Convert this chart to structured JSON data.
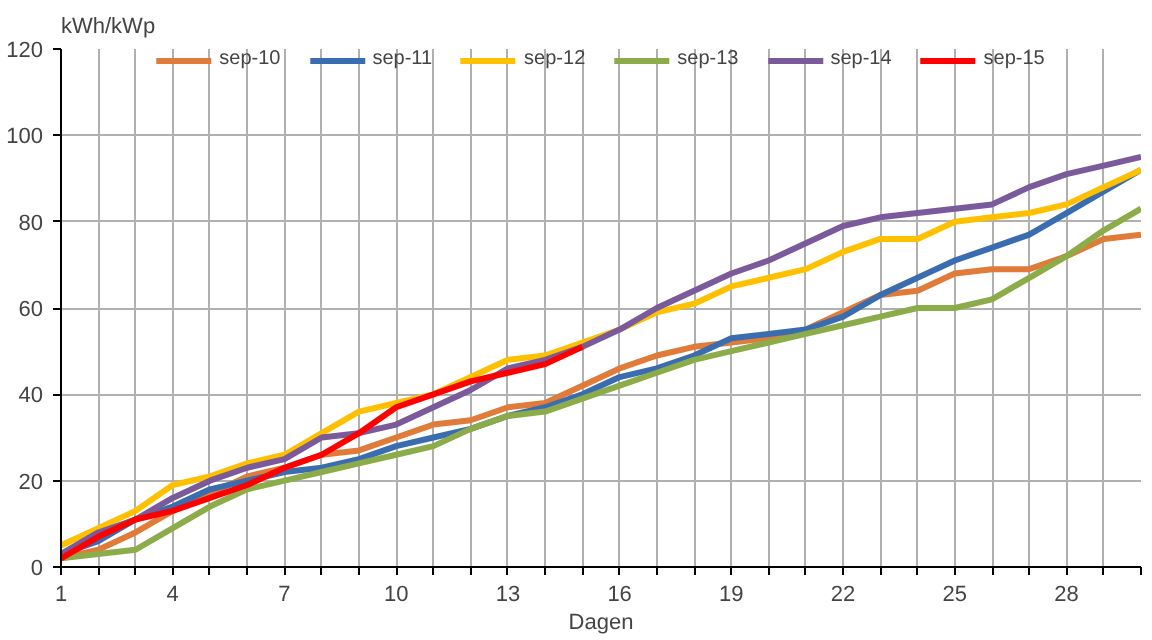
{
  "chart_data": {
    "type": "line",
    "ylabel": "kWh/kWp",
    "xlabel": "Dagen",
    "xlim": [
      1,
      30
    ],
    "xticks": [
      1,
      {
        "value": 2,
        "label": null
      },
      {
        "value": 3,
        "label": null
      },
      4,
      {
        "value": 5,
        "label": null
      },
      {
        "value": 6,
        "label": null
      },
      7,
      {
        "value": 8,
        "label": null
      },
      {
        "value": 9,
        "label": null
      },
      10,
      {
        "value": 11,
        "label": null
      },
      {
        "value": 12,
        "label": null
      },
      13,
      {
        "value": 14,
        "label": null
      },
      {
        "value": 15,
        "label": null
      },
      16,
      {
        "value": 17,
        "label": null
      },
      {
        "value": 18,
        "label": null
      },
      19,
      {
        "value": 20,
        "label": null
      },
      {
        "value": 21,
        "label": null
      },
      22,
      {
        "value": 23,
        "label": null
      },
      {
        "value": 24,
        "label": null
      },
      25,
      {
        "value": 26,
        "label": null
      },
      {
        "value": 27,
        "label": null
      },
      28,
      {
        "value": 29,
        "label": null
      },
      {
        "value": 30,
        "label": null
      }
    ],
    "ylim": [
      0,
      120
    ],
    "yticks": [
      0,
      20,
      40,
      60,
      80,
      100,
      120
    ],
    "grid": true,
    "legend": "top",
    "line_style": "solid",
    "x": [
      1,
      2,
      3,
      4,
      5,
      6,
      7,
      8,
      9,
      10,
      11,
      12,
      13,
      14,
      15,
      16,
      17,
      18,
      19,
      20,
      21,
      22,
      23,
      24,
      25,
      26,
      27,
      28,
      29,
      30
    ],
    "series": [
      {
        "name": "sep-10",
        "color": "#e07b39",
        "values": [
          2,
          4,
          8,
          13,
          17,
          21,
          23,
          26,
          27,
          30,
          33,
          34,
          37,
          38,
          42,
          46,
          49,
          51,
          52,
          53,
          55,
          59,
          63,
          64,
          68,
          69,
          69,
          72,
          76,
          77
        ]
      },
      {
        "name": "sep-11",
        "color": "#3a6db0",
        "values": [
          3,
          6,
          11,
          14,
          18,
          20,
          22,
          23,
          25,
          28,
          30,
          32,
          35,
          37,
          40,
          44,
          46,
          49,
          53,
          54,
          55,
          58,
          63,
          67,
          71,
          74,
          77,
          82,
          87,
          92
        ]
      },
      {
        "name": "sep-12",
        "color": "#ffc000",
        "values": [
          5,
          9,
          13,
          19,
          21,
          24,
          26,
          31,
          36,
          38,
          40,
          44,
          48,
          49,
          52,
          55,
          59,
          61,
          65,
          67,
          69,
          73,
          76,
          76,
          80,
          81,
          82,
          84,
          88,
          92
        ]
      },
      {
        "name": "sep-13",
        "color": "#8cac4a",
        "values": [
          2,
          3,
          4,
          9,
          14,
          18,
          20,
          22,
          24,
          26,
          28,
          32,
          35,
          36,
          39,
          42,
          45,
          48,
          50,
          52,
          54,
          56,
          58,
          60,
          60,
          62,
          67,
          72,
          78,
          83
        ]
      },
      {
        "name": "sep-14",
        "color": "#7a5a9a",
        "values": [
          3,
          8,
          11,
          16,
          20,
          23,
          25,
          30,
          31,
          33,
          37,
          41,
          46,
          48,
          51,
          55,
          60,
          64,
          68,
          71,
          75,
          79,
          81,
          82,
          83,
          84,
          88,
          91,
          93,
          95
        ]
      },
      {
        "name": "sep-15",
        "color": "#ff0000",
        "values": [
          2,
          7,
          11,
          13,
          16,
          19,
          23,
          26,
          31,
          37,
          40,
          43,
          45,
          47,
          51,
          null,
          null,
          null,
          null,
          null,
          null,
          null,
          null,
          null,
          null,
          null,
          null,
          null,
          null,
          null
        ]
      }
    ]
  }
}
